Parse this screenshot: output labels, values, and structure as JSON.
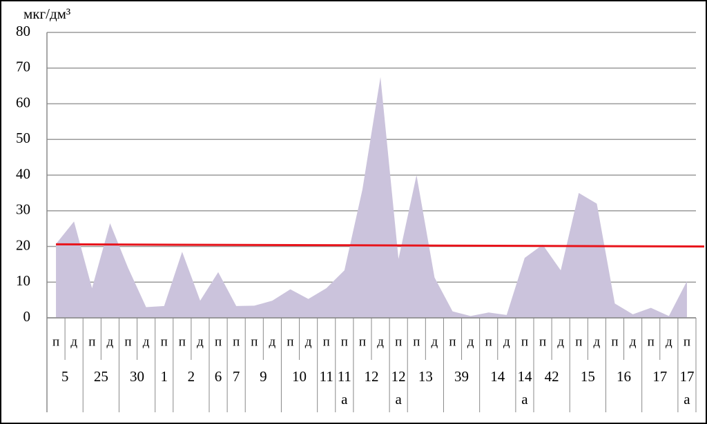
{
  "chart_data": {
    "type": "area",
    "y_label": "мкг/дм³",
    "categories": [
      "п",
      "д",
      "п",
      "д",
      "п",
      "д",
      "п",
      "п",
      "д",
      "п",
      "п",
      "п",
      "д",
      "п",
      "д",
      "п",
      "п",
      "п",
      "д",
      "п",
      "п",
      "д",
      "п",
      "д",
      "п",
      "д",
      "п",
      "п",
      "д",
      "п",
      "д",
      "п",
      "д",
      "п",
      "д",
      "п"
    ],
    "group_labels": [
      [
        "5"
      ],
      null,
      [
        "25"
      ],
      null,
      [
        "30"
      ],
      null,
      [
        "1"
      ],
      [
        "2"
      ],
      null,
      [
        "6"
      ],
      [
        "7"
      ],
      [
        "9"
      ],
      null,
      [
        "10"
      ],
      null,
      [
        "11"
      ],
      [
        "11",
        "а"
      ],
      [
        "12"
      ],
      null,
      [
        "12",
        "а"
      ],
      [
        "13"
      ],
      null,
      [
        "39"
      ],
      null,
      [
        "14"
      ],
      null,
      [
        "14",
        "а"
      ],
      [
        "42"
      ],
      null,
      [
        "15"
      ],
      null,
      [
        "16"
      ],
      null,
      [
        "17"
      ],
      null,
      [
        "17",
        "а"
      ]
    ],
    "series": [
      {
        "color": "#cbc3dc",
        "values": [
          20.7,
          27,
          8.3,
          26.5,
          14,
          3,
          3.3,
          18.5,
          4.8,
          12.8,
          3.3,
          3.4,
          4.8,
          8,
          5.3,
          8.3,
          13.3,
          36,
          67.5,
          16.5,
          40,
          11.3,
          1.8,
          0.5,
          1.5,
          0.8,
          16.8,
          20.5,
          13.3,
          35,
          32,
          4,
          1,
          2.8,
          0.5,
          10.3
        ]
      }
    ],
    "reference_line": {
      "color": "#e8141b",
      "values": [
        20.6,
        20
      ]
    },
    "ylim": [
      0,
      80
    ],
    "yticks": [
      0,
      10,
      20,
      30,
      40,
      50,
      60,
      70,
      80
    ],
    "grid": true
  }
}
